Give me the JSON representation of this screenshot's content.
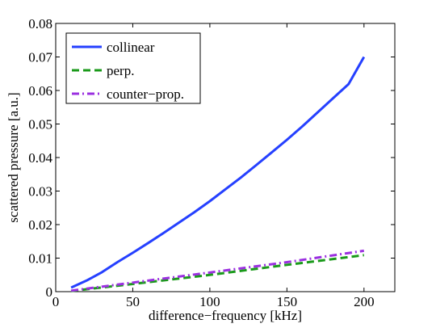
{
  "chart_data": {
    "type": "line",
    "title": "",
    "xlabel": "difference−frequency [kHz]",
    "ylabel": "scattered pressure [a.u.]",
    "xlim": [
      0,
      220
    ],
    "ylim": [
      0,
      0.08
    ],
    "xticks": [
      0,
      50,
      100,
      150,
      200
    ],
    "yticks": [
      0,
      0.01,
      0.02,
      0.03,
      0.04,
      0.05,
      0.06,
      0.07,
      0.08
    ],
    "xtick_labels": [
      "0",
      "50",
      "100",
      "150",
      "200"
    ],
    "ytick_labels": [
      "0",
      "0.01",
      "0.02",
      "0.03",
      "0.04",
      "0.05",
      "0.06",
      "0.07",
      "0.08"
    ],
    "grid": false,
    "legend_position": "top-left",
    "series": [
      {
        "name": "collinear",
        "color": "#2540ff",
        "style": "solid",
        "x": [
          10,
          20,
          30,
          40,
          50,
          60,
          70,
          80,
          90,
          100,
          110,
          120,
          130,
          140,
          150,
          160,
          170,
          180,
          190,
          200
        ],
        "y": [
          0.0012,
          0.0033,
          0.0058,
          0.0088,
          0.0116,
          0.0145,
          0.0175,
          0.0206,
          0.0237,
          0.027,
          0.0305,
          0.034,
          0.0377,
          0.0415,
          0.0453,
          0.0493,
          0.0535,
          0.0577,
          0.0619,
          0.07
        ]
      },
      {
        "name": "perp.",
        "color": "#1a9a1a",
        "style": "dashed",
        "x": [
          10,
          50,
          100,
          150,
          200
        ],
        "y": [
          0.0002,
          0.0023,
          0.005,
          0.008,
          0.0109
        ]
      },
      {
        "name": "counter−prop.",
        "color": "#9b30e0",
        "style": "dashdot",
        "x": [
          10,
          50,
          100,
          150,
          200
        ],
        "y": [
          0.0003,
          0.0027,
          0.0057,
          0.0088,
          0.0122
        ]
      }
    ]
  }
}
